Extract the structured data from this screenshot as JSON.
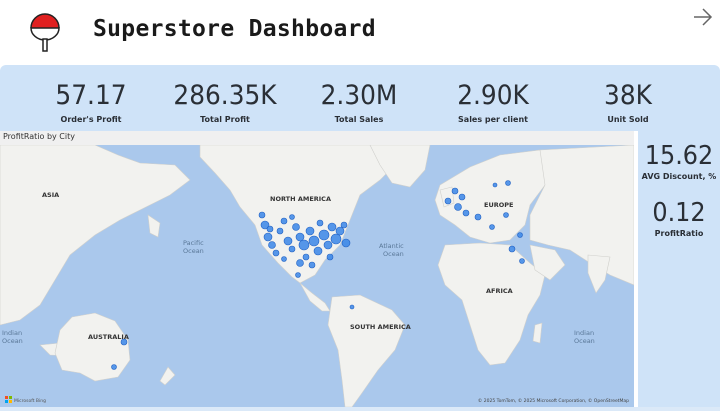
{
  "header": {
    "title": "Superstore Dashboard",
    "logo_icon": "sharingan-fan-logo",
    "nav_icon": "arrow-right-icon"
  },
  "kpis": [
    {
      "value": "57.17",
      "label": "Order's Profit"
    },
    {
      "value": "286.35K",
      "label": "Total Profit"
    },
    {
      "value": "2.30M",
      "label": "Total Sales"
    },
    {
      "value": "2.90K",
      "label": "Sales per client"
    },
    {
      "value": "38K",
      "label": "Unit Sold"
    }
  ],
  "side_kpis": [
    {
      "value": "15.62",
      "label": "AVG Discount, %"
    },
    {
      "value": "0.12",
      "label": "ProfitRatio"
    }
  ],
  "map": {
    "title": "ProfitRatio by City",
    "labels": {
      "asia_left": "ASIA",
      "north_america": "NORTH AMERICA",
      "europe": "EUROPE",
      "pacific": "Pacific",
      "pacific2": "Ocean",
      "atlantic": "Atlantic",
      "atlantic2": "Ocean",
      "africa": "AFRICA",
      "south_america": "SOUTH AMERICA",
      "australia": "AUSTRALIA",
      "indian_left": "Indian",
      "indian_left2": "Ocean",
      "indian_right": "Indian",
      "indian_right2": "Ocean"
    },
    "attribution": "© 2025 TomTom, © 2025 Microsoft Corporation, © OpenStreetMap",
    "bing_logo": "Microsoft Bing",
    "colors": {
      "water": "#aac8ec",
      "land": "#f2f2ef",
      "dot": "#3a86e8",
      "dot_stroke": "#1f5fc2"
    }
  }
}
